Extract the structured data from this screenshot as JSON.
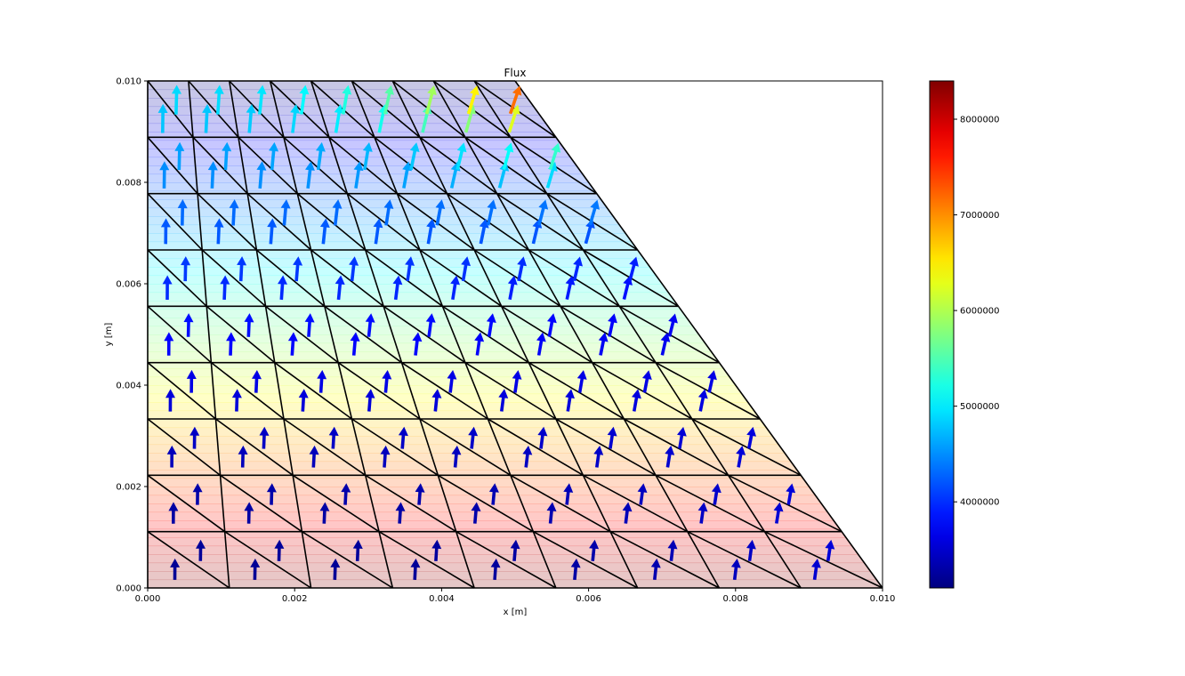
{
  "chart_data": {
    "type": "quiver",
    "title": "Flux",
    "xlabel": "x [m]",
    "ylabel": "y [m]",
    "xlim": [
      0,
      0.01
    ],
    "ylim": [
      0,
      0.01
    ],
    "x_ticks": [
      "0.000",
      "0.002",
      "0.004",
      "0.006",
      "0.008",
      "0.010"
    ],
    "y_ticks": [
      "0.000",
      "0.002",
      "0.004",
      "0.006",
      "0.008",
      "0.010"
    ],
    "domain_top_x_end": 0.005,
    "mesh_divisions": {
      "nx": 9,
      "ny": 9
    },
    "colorbar": {
      "colormap": "jet",
      "range": [
        3100000,
        8400000
      ],
      "ticks": [
        "4000000",
        "5000000",
        "6000000",
        "7000000",
        "8000000"
      ]
    },
    "background_field": {
      "colormap": "jet_r",
      "opacity": 0.22,
      "range": [
        0,
        1
      ]
    },
    "flux_range_bottom": [
      3200000,
      3600000
    ],
    "flux_range_top": [
      5000000,
      8400000
    ]
  }
}
